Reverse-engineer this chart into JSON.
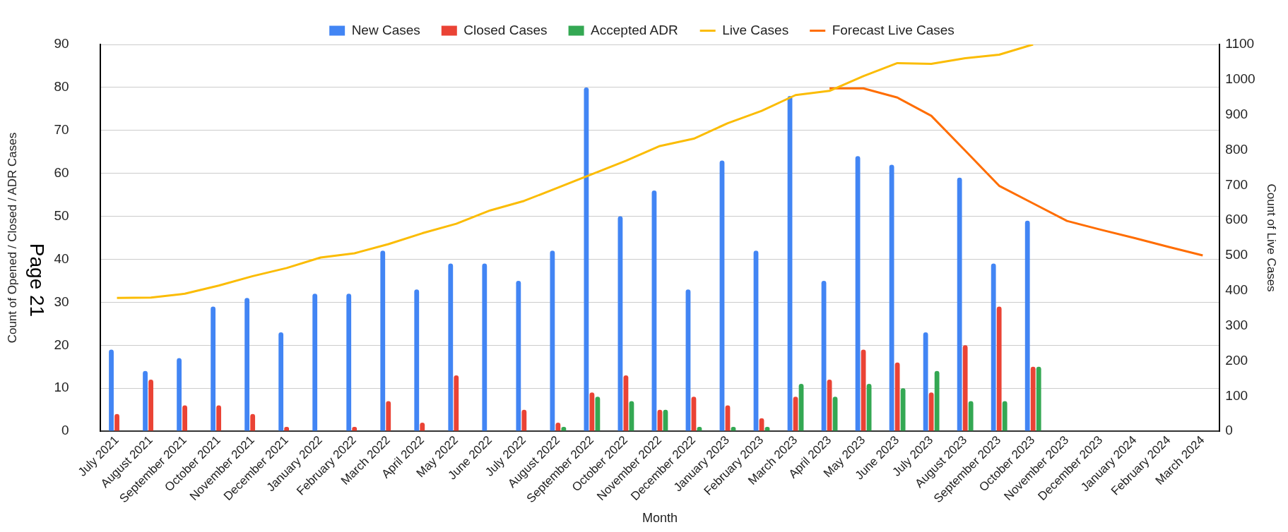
{
  "chart_data": {
    "type": "bar",
    "xlabel": "Month",
    "ylabel": "Count of Opened / Closed / ADR Cases",
    "y2label": "Count of Live Cases",
    "categories": [
      "July 2021",
      "August 2021",
      "September 2021",
      "October 2021",
      "November 2021",
      "December 2021",
      "January 2022",
      "February 2022",
      "March 2022",
      "April 2022",
      "May 2022",
      "June 2022",
      "July 2022",
      "August 2022",
      "September 2022",
      "October 2022",
      "November 2022",
      "December 2022",
      "January 2023",
      "February 2023",
      "March 2023",
      "April 2023",
      "May 2023",
      "June 2023",
      "July 2023",
      "August 2023",
      "September 2023",
      "October 2023",
      "November 2023",
      "December 2023",
      "January 2024",
      "February 2024",
      "March 2024"
    ],
    "series": [
      {
        "name": "New Cases",
        "color": "#4285f4",
        "values": [
          19,
          14,
          17,
          29,
          31,
          23,
          32,
          32,
          42,
          33,
          39,
          39,
          35,
          42,
          80,
          50,
          56,
          33,
          63,
          42,
          78,
          35,
          64,
          62,
          23,
          59,
          39,
          49,
          null,
          null,
          null,
          null,
          null
        ]
      },
      {
        "name": "Closed Cases",
        "color": "#ea4335",
        "values": [
          4,
          12,
          6,
          6,
          4,
          1,
          null,
          1,
          7,
          2,
          13,
          null,
          5,
          2,
          9,
          13,
          5,
          8,
          6,
          3,
          8,
          12,
          19,
          16,
          9,
          20,
          29,
          15,
          null,
          null,
          null,
          null,
          null
        ]
      },
      {
        "name": "Accepted ADR",
        "color": "#34a853",
        "values": [
          null,
          null,
          null,
          null,
          null,
          null,
          null,
          null,
          null,
          null,
          null,
          null,
          null,
          1,
          8,
          7,
          5,
          1,
          1,
          1,
          11,
          8,
          11,
          10,
          14,
          7,
          7,
          15,
          null,
          null,
          null,
          null,
          null
        ]
      },
      {
        "name": "Live Cases",
        "type": "line",
        "axis": "y2",
        "color": "#fbbc04",
        "values": [
          379,
          380,
          391,
          414,
          441,
          464,
          494,
          506,
          532,
          563,
          590,
          628,
          655,
          693,
          731,
          769,
          811,
          832,
          876,
          911,
          956,
          968,
          1010,
          1047,
          1045,
          1061,
          1071,
          1100,
          null,
          null,
          null,
          null,
          null
        ]
      },
      {
        "name": "Forecast Live Cases",
        "type": "line",
        "axis": "y2",
        "color": "#ff6d01",
        "values": [
          null,
          null,
          null,
          null,
          null,
          null,
          null,
          null,
          null,
          null,
          null,
          null,
          null,
          null,
          null,
          null,
          null,
          null,
          null,
          null,
          null,
          975,
          975,
          949,
          897,
          798,
          698,
          648,
          598,
          573,
          549,
          524,
          500
        ]
      }
    ],
    "ylim": [
      0,
      90
    ],
    "yticks": [
      0,
      10,
      20,
      30,
      40,
      50,
      60,
      70,
      80,
      90
    ],
    "y2lim": [
      0,
      1100
    ],
    "y2ticks": [
      0,
      100,
      200,
      300,
      400,
      500,
      600,
      700,
      800,
      900,
      1000,
      1100
    ],
    "grid": "y",
    "legend": "top",
    "marker": "none",
    "annotations": [
      "Page 21"
    ]
  }
}
